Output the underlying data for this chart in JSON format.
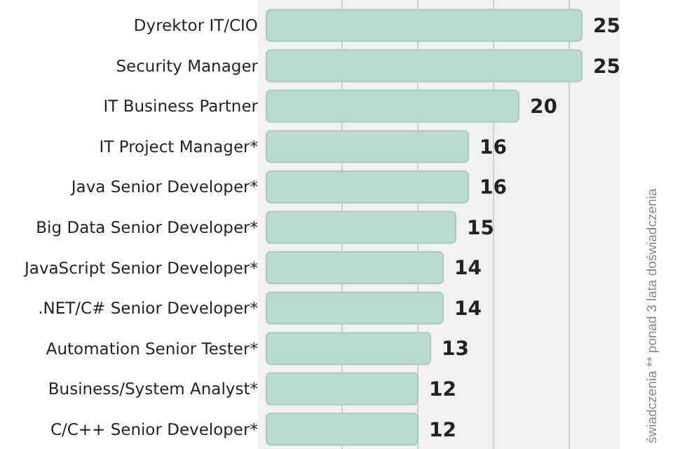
{
  "chart_data": {
    "type": "bar",
    "orientation": "horizontal",
    "categories": [
      "Dyrektor IT/CIO",
      "Security Manager",
      "IT Business Partner",
      "IT Project Manager*",
      "Java Senior Developer*",
      "Big Data Senior Developer*",
      "JavaScript Senior Developer*",
      ".NET/C# Senior Developer*",
      "Automation Senior Tester*",
      "Business/System Analyst*",
      "C/C++ Senior Developer*"
    ],
    "values": [
      25,
      25,
      20,
      16,
      16,
      15,
      14,
      14,
      13,
      12,
      12
    ],
    "color": "#b9dcd0",
    "data_labels": true,
    "grid": "x",
    "xlim": [
      0,
      28
    ],
    "xticks": [
      {
        "value": 6,
        "label": null
      },
      {
        "value": 12,
        "label": null
      },
      {
        "value": 18,
        "label": null
      },
      {
        "value": 24,
        "label": null
      }
    ],
    "annotations": [
      "świadczenia ** ponad 3 lata doświadczenia"
    ]
  }
}
